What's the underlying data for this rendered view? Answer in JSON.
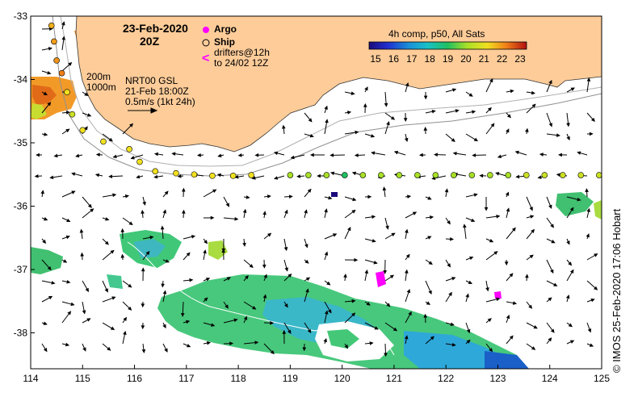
{
  "map": {
    "date_title": "23-Feb-2020",
    "time_title": "20Z",
    "composite_title": "4h comp, p50, All Sats",
    "colorbar_ticks": [
      "15",
      "16",
      "17",
      "18",
      "19",
      "20",
      "21",
      "22",
      "23"
    ],
    "legend": {
      "argo": "Argo",
      "ship": "Ship",
      "drifters_line1": "drifters@12h",
      "drifters_line2": "to 24/02 12Z"
    },
    "isobaths": {
      "shallow": "200m",
      "deep": "1000m"
    },
    "current_info": {
      "line1": "NRT00 GSL",
      "line2": "21-Feb 18:00Z",
      "line3": "0.5m/s (1kt 24h)"
    },
    "x_ticks": [
      "114",
      "115",
      "116",
      "117",
      "118",
      "119",
      "120",
      "121",
      "122",
      "123",
      "124",
      "125"
    ],
    "y_ticks": [
      "-33",
      "-34",
      "-35",
      "-36",
      "-37",
      "-38"
    ],
    "credit": "© IMOS 25-Feb-2020 17:06 Hobart",
    "colors": {
      "land": "#fdcc99",
      "argo": "#ff00ff",
      "drifter": "#ff00ff",
      "current_arrow": "#000000"
    }
  },
  "ship_track": [
    {
      "lon": 114.4,
      "lat": -33.15,
      "temp": 21.5
    },
    {
      "lon": 114.45,
      "lat": -33.4,
      "temp": 21.7
    },
    {
      "lon": 114.5,
      "lat": -33.7,
      "temp": 21.8
    },
    {
      "lon": 114.6,
      "lat": -33.9,
      "temp": 22.0
    },
    {
      "lon": 114.7,
      "lat": -34.2,
      "temp": 21.0
    },
    {
      "lon": 114.8,
      "lat": -34.55,
      "temp": 20.5
    },
    {
      "lon": 115.0,
      "lat": -34.8,
      "temp": 21.0
    },
    {
      "lon": 115.4,
      "lat": -34.98,
      "temp": 21.0
    },
    {
      "lon": 115.9,
      "lat": -35.1,
      "temp": 21.0
    },
    {
      "lon": 116.1,
      "lat": -35.3,
      "temp": 21.0
    },
    {
      "lon": 116.4,
      "lat": -35.45,
      "temp": 21.0
    },
    {
      "lon": 116.8,
      "lat": -35.48,
      "temp": 21.0
    },
    {
      "lon": 117.15,
      "lat": -35.5,
      "temp": 21.0
    },
    {
      "lon": 117.5,
      "lat": -35.52,
      "temp": 21.0
    },
    {
      "lon": 117.9,
      "lat": -35.52,
      "temp": 21.0
    },
    {
      "lon": 118.25,
      "lat": -35.51,
      "temp": 21.0
    },
    {
      "lon": 119.0,
      "lat": -35.51,
      "temp": 20.0
    },
    {
      "lon": 119.35,
      "lat": -35.51,
      "temp": 20.0
    },
    {
      "lon": 119.7,
      "lat": -35.51,
      "temp": 20.0
    },
    {
      "lon": 120.05,
      "lat": -35.51,
      "temp": 19.0
    },
    {
      "lon": 120.4,
      "lat": -35.51,
      "temp": 20.0
    },
    {
      "lon": 120.75,
      "lat": -35.51,
      "temp": 20.0
    },
    {
      "lon": 121.1,
      "lat": -35.51,
      "temp": 20.0
    },
    {
      "lon": 121.45,
      "lat": -35.51,
      "temp": 20.0
    },
    {
      "lon": 121.8,
      "lat": -35.51,
      "temp": 20.0
    },
    {
      "lon": 122.15,
      "lat": -35.51,
      "temp": 20.0
    },
    {
      "lon": 122.5,
      "lat": -35.51,
      "temp": 20.0
    },
    {
      "lon": 122.85,
      "lat": -35.51,
      "temp": 20.0
    },
    {
      "lon": 123.2,
      "lat": -35.51,
      "temp": 20.0
    },
    {
      "lon": 123.55,
      "lat": -35.51,
      "temp": 20.5
    },
    {
      "lon": 123.9,
      "lat": -35.51,
      "temp": 20.5
    },
    {
      "lon": 124.25,
      "lat": -35.51,
      "temp": 20.5
    },
    {
      "lon": 124.6,
      "lat": -35.51,
      "temp": 20.5
    },
    {
      "lon": 124.95,
      "lat": -35.51,
      "temp": 20.5
    }
  ]
}
